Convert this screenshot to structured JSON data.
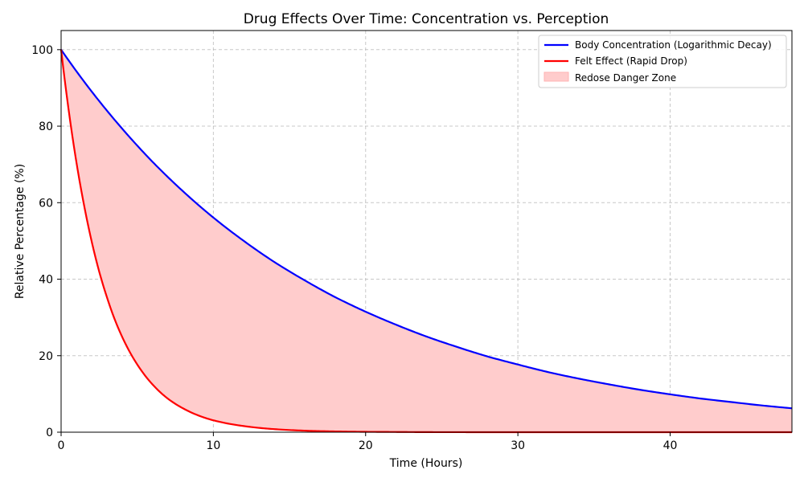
{
  "chart_data": {
    "type": "line",
    "title": "Drug Effects Over Time: Concentration vs. Perception",
    "xlabel": "Time (Hours)",
    "ylabel": "Relative Percentage (%)",
    "xlim": [
      0,
      48
    ],
    "ylim": [
      0,
      105
    ],
    "xticks": [
      0,
      10,
      20,
      30,
      40
    ],
    "yticks": [
      0,
      20,
      40,
      60,
      80,
      100
    ],
    "grid": true,
    "legend_position": "top-right",
    "series": [
      {
        "name": "Body Concentration (Logarithmic Decay)",
        "color": "#0000ff",
        "x": [
          0,
          2,
          4,
          6,
          8,
          10,
          12,
          14,
          16,
          18,
          20,
          22,
          24,
          26,
          28,
          30,
          32,
          34,
          36,
          38,
          40,
          42,
          44,
          46,
          48
        ],
        "y": [
          100,
          89.1,
          79.4,
          70.7,
          63.0,
          56.1,
          50.0,
          44.5,
          39.7,
          35.3,
          31.5,
          28.1,
          25.0,
          22.3,
          19.8,
          17.7,
          15.7,
          14.0,
          12.5,
          11.1,
          9.9,
          8.8,
          7.9,
          7.0,
          6.25
        ]
      },
      {
        "name": "Felt Effect (Rapid Drop)",
        "color": "#ff0000",
        "x": [
          0,
          0.5,
          1,
          1.5,
          2,
          2.5,
          3,
          3.5,
          4,
          5,
          6,
          7,
          8,
          9,
          10,
          12,
          14,
          16,
          18,
          20,
          24,
          28,
          32,
          36,
          40,
          44,
          48
        ],
        "y": [
          100,
          84.1,
          70.7,
          59.5,
          50.0,
          42.0,
          35.4,
          29.7,
          25.0,
          17.7,
          12.5,
          8.8,
          6.25,
          4.4,
          3.1,
          1.6,
          0.8,
          0.4,
          0.2,
          0.1,
          0.02,
          0.0,
          0.0,
          0.0,
          0.0,
          0.0,
          0.0
        ]
      }
    ],
    "fill_between": {
      "name": "Redose Danger Zone",
      "color": "#ffcccc",
      "upper": "Body Concentration (Logarithmic Decay)",
      "lower": "Felt Effect (Rapid Drop)"
    }
  }
}
